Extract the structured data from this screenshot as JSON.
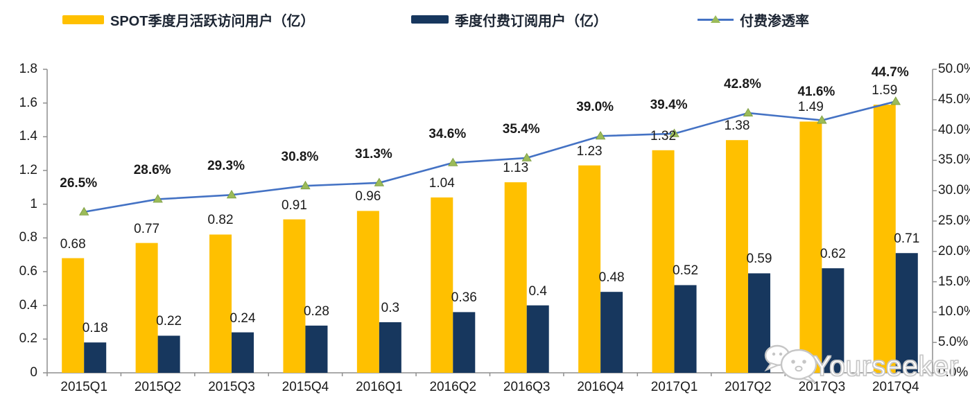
{
  "legend": {
    "items": [
      {
        "id": "mau",
        "label": "SPOT季度月活跃访问用户（亿）",
        "color": "#FFC000",
        "type": "bar"
      },
      {
        "id": "subs",
        "label": "季度付费订阅用户（亿）",
        "color": "#17375E",
        "type": "bar"
      },
      {
        "id": "pen",
        "label": "付费渗透率",
        "color": "#4472C4",
        "marker_color": "#9BBB59",
        "type": "line"
      }
    ]
  },
  "watermark": {
    "icon": "wechat-icon",
    "text": "Yourseeker"
  },
  "chart_data": {
    "type": "bar+line combo",
    "categories": [
      "2015Q1",
      "2015Q2",
      "2015Q3",
      "2015Q4",
      "2016Q1",
      "2016Q2",
      "2016Q3",
      "2016Q4",
      "2017Q1",
      "2017Q2",
      "2017Q3",
      "2017Q4"
    ],
    "series": [
      {
        "name": "SPOT季度月活跃访问用户（亿）",
        "type": "bar",
        "axis": "left",
        "color": "#FFC000",
        "values": [
          0.68,
          0.77,
          0.82,
          0.91,
          0.96,
          1.04,
          1.13,
          1.23,
          1.32,
          1.38,
          1.49,
          1.59
        ],
        "labels": [
          "0.68",
          "0.77",
          "0.82",
          "0.91",
          "0.96",
          "1.04",
          "1.13",
          "1.23",
          "1.32",
          "1.38",
          "1.49",
          "1.59"
        ]
      },
      {
        "name": "季度付费订阅用户（亿）",
        "type": "bar",
        "axis": "left",
        "color": "#17375E",
        "values": [
          0.18,
          0.22,
          0.24,
          0.28,
          0.3,
          0.36,
          0.4,
          0.48,
          0.52,
          0.59,
          0.62,
          0.71
        ],
        "labels": [
          "0.18",
          "0.22",
          "0.24",
          "0.28",
          "0.3",
          "0.36",
          "0.4",
          "0.48",
          "0.52",
          "0.59",
          "0.62",
          "0.71"
        ]
      },
      {
        "name": "付费渗透率",
        "type": "line",
        "axis": "right",
        "color": "#4472C4",
        "marker": "triangle",
        "marker_color": "#9BBB59",
        "values": [
          26.5,
          28.6,
          29.3,
          30.8,
          31.3,
          34.6,
          35.4,
          39.0,
          39.4,
          42.8,
          41.6,
          44.7
        ],
        "labels": [
          "26.5%",
          "28.6%",
          "29.3%",
          "30.8%",
          "31.3%",
          "34.6%",
          "35.4%",
          "39.0%",
          "39.4%",
          "42.8%",
          "41.6%",
          "44.7%"
        ]
      }
    ],
    "left_axis": {
      "min": 0,
      "max": 1.8,
      "step": 0.2,
      "ticks": [
        "0",
        "0.2",
        "0.4",
        "0.6",
        "0.8",
        "1",
        "1.2",
        "1.4",
        "1.6",
        "1.8"
      ]
    },
    "right_axis": {
      "min": 0,
      "max": 50,
      "step": 5,
      "ticks": [
        "0.0%",
        "5.0%",
        "10.0%",
        "15.0%",
        "20.0%",
        "25.0%",
        "30.0%",
        "35.0%",
        "40.0%",
        "45.0%",
        "50.0%"
      ]
    },
    "grid": false,
    "legend_position": "top",
    "axis_color": "#8e8e8e"
  }
}
